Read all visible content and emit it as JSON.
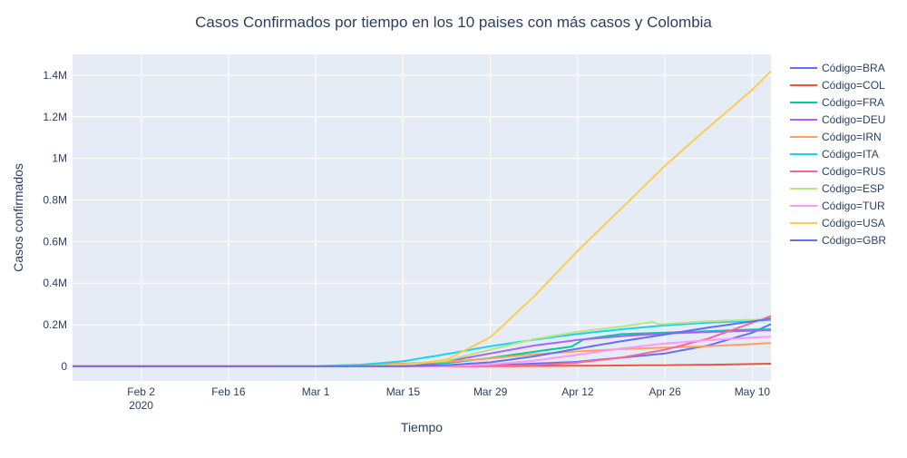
{
  "chart_data": {
    "type": "line",
    "title": "Casos Confirmados por tiempo en los 10 paises con más casos y Colombia",
    "xlabel": "Tiempo",
    "ylabel": "Casos confirmados",
    "legend_position": "right",
    "grid": true,
    "x_range": [
      "2020-01-22",
      "2020-05-13"
    ],
    "y_range": [
      -70000,
      1500000
    ],
    "x_ticks": [
      {
        "date": "2020-02-02",
        "label": "Feb 2",
        "sublabel": "2020"
      },
      {
        "date": "2020-02-16",
        "label": "Feb 16"
      },
      {
        "date": "2020-03-01",
        "label": "Mar 1"
      },
      {
        "date": "2020-03-15",
        "label": "Mar 15"
      },
      {
        "date": "2020-03-29",
        "label": "Mar 29"
      },
      {
        "date": "2020-04-12",
        "label": "Apr 12"
      },
      {
        "date": "2020-04-26",
        "label": "Apr 26"
      },
      {
        "date": "2020-05-10",
        "label": "May 10"
      }
    ],
    "y_ticks": [
      {
        "value": 0,
        "label": "0"
      },
      {
        "value": 200000,
        "label": "0.2M"
      },
      {
        "value": 400000,
        "label": "0.4M"
      },
      {
        "value": 600000,
        "label": "0.6M"
      },
      {
        "value": 800000,
        "label": "0.8M"
      },
      {
        "value": 1000000,
        "label": "1M"
      },
      {
        "value": 1200000,
        "label": "1.2M"
      },
      {
        "value": 1400000,
        "label": "1.4M"
      }
    ],
    "series": [
      {
        "name": "Código=BRA",
        "color": "#636efa",
        "points": [
          [
            "2020-01-22",
            0
          ],
          [
            "2020-03-15",
            200
          ],
          [
            "2020-03-29",
            4300
          ],
          [
            "2020-04-12",
            22000
          ],
          [
            "2020-04-26",
            62000
          ],
          [
            "2020-05-03",
            101000
          ],
          [
            "2020-05-10",
            162000
          ],
          [
            "2020-05-13",
            203000
          ]
        ]
      },
      {
        "name": "Código=COL",
        "color": "#ef553b",
        "points": [
          [
            "2020-01-22",
            0
          ],
          [
            "2020-03-15",
            50
          ],
          [
            "2020-03-29",
            700
          ],
          [
            "2020-04-12",
            2800
          ],
          [
            "2020-04-26",
            5600
          ],
          [
            "2020-05-03",
            7700
          ],
          [
            "2020-05-10",
            11000
          ],
          [
            "2020-05-13",
            12900
          ]
        ]
      },
      {
        "name": "Código=FRA",
        "color": "#00cc96",
        "points": [
          [
            "2020-01-22",
            0
          ],
          [
            "2020-03-01",
            130
          ],
          [
            "2020-03-15",
            5400
          ],
          [
            "2020-03-22",
            16000
          ],
          [
            "2020-03-29",
            40000
          ],
          [
            "2020-04-05",
            70000
          ],
          [
            "2020-04-11",
            95000
          ],
          [
            "2020-04-13",
            130000
          ],
          [
            "2020-04-19",
            155000
          ],
          [
            "2020-04-26",
            162000
          ],
          [
            "2020-05-03",
            169000
          ],
          [
            "2020-05-10",
            177000
          ],
          [
            "2020-05-13",
            178000
          ]
        ]
      },
      {
        "name": "Código=DEU",
        "color": "#ab63fa",
        "points": [
          [
            "2020-01-22",
            0
          ],
          [
            "2020-03-01",
            130
          ],
          [
            "2020-03-15",
            5800
          ],
          [
            "2020-03-22",
            24000
          ],
          [
            "2020-03-29",
            62000
          ],
          [
            "2020-04-05",
            100000
          ],
          [
            "2020-04-12",
            127000
          ],
          [
            "2020-04-19",
            145000
          ],
          [
            "2020-04-26",
            158000
          ],
          [
            "2020-05-03",
            165000
          ],
          [
            "2020-05-10",
            171000
          ],
          [
            "2020-05-13",
            174000
          ]
        ]
      },
      {
        "name": "Código=IRN",
        "color": "#ffa15a",
        "points": [
          [
            "2020-01-22",
            0
          ],
          [
            "2020-02-26",
            140
          ],
          [
            "2020-03-01",
            1500
          ],
          [
            "2020-03-08",
            6600
          ],
          [
            "2020-03-15",
            14000
          ],
          [
            "2020-03-22",
            21600
          ],
          [
            "2020-03-29",
            38300
          ],
          [
            "2020-04-05",
            58000
          ],
          [
            "2020-04-12",
            72000
          ],
          [
            "2020-04-19",
            83000
          ],
          [
            "2020-04-26",
            90000
          ],
          [
            "2020-05-03",
            97000
          ],
          [
            "2020-05-10",
            107000
          ],
          [
            "2020-05-13",
            112000
          ]
        ]
      },
      {
        "name": "Código=ITA",
        "color": "#19d3f3",
        "points": [
          [
            "2020-01-22",
            0
          ],
          [
            "2020-02-23",
            150
          ],
          [
            "2020-03-01",
            1700
          ],
          [
            "2020-03-08",
            7400
          ],
          [
            "2020-03-15",
            24700
          ],
          [
            "2020-03-22",
            59000
          ],
          [
            "2020-03-29",
            97000
          ],
          [
            "2020-04-05",
            128000
          ],
          [
            "2020-04-12",
            156000
          ],
          [
            "2020-04-19",
            178000
          ],
          [
            "2020-04-26",
            197000
          ],
          [
            "2020-05-03",
            210000
          ],
          [
            "2020-05-10",
            219000
          ],
          [
            "2020-05-13",
            222000
          ]
        ]
      },
      {
        "name": "Código=RUS",
        "color": "#ff6692",
        "points": [
          [
            "2020-01-22",
            0
          ],
          [
            "2020-03-15",
            60
          ],
          [
            "2020-03-29",
            1500
          ],
          [
            "2020-04-05",
            5400
          ],
          [
            "2020-04-12",
            18000
          ],
          [
            "2020-04-19",
            42000
          ],
          [
            "2020-04-26",
            80000
          ],
          [
            "2020-05-03",
            134000
          ],
          [
            "2020-05-10",
            210000
          ],
          [
            "2020-05-13",
            242000
          ]
        ]
      },
      {
        "name": "Código=ESP",
        "color": "#b6e880",
        "points": [
          [
            "2020-01-22",
            0
          ],
          [
            "2020-03-01",
            80
          ],
          [
            "2020-03-08",
            670
          ],
          [
            "2020-03-15",
            7800
          ],
          [
            "2020-03-22",
            28600
          ],
          [
            "2020-03-29",
            80000
          ],
          [
            "2020-04-05",
            131000
          ],
          [
            "2020-04-12",
            166000
          ],
          [
            "2020-04-19",
            191000
          ],
          [
            "2020-04-24",
            213000
          ],
          [
            "2020-04-25",
            202000
          ],
          [
            "2020-05-03",
            217000
          ],
          [
            "2020-05-10",
            224000
          ],
          [
            "2020-05-13",
            228000
          ]
        ]
      },
      {
        "name": "Código=TUR",
        "color": "#ff97ff",
        "points": [
          [
            "2020-01-22",
            0
          ],
          [
            "2020-03-15",
            50
          ],
          [
            "2020-03-22",
            1200
          ],
          [
            "2020-03-29",
            9200
          ],
          [
            "2020-04-05",
            27000
          ],
          [
            "2020-04-12",
            56000
          ],
          [
            "2020-04-19",
            86000
          ],
          [
            "2020-04-26",
            110000
          ],
          [
            "2020-05-03",
            126000
          ],
          [
            "2020-05-10",
            138000
          ],
          [
            "2020-05-13",
            143000
          ]
        ]
      },
      {
        "name": "Código=USA",
        "color": "#fecb52",
        "points": [
          [
            "2020-01-22",
            0
          ],
          [
            "2020-03-01",
            70
          ],
          [
            "2020-03-08",
            500
          ],
          [
            "2020-03-15",
            3500
          ],
          [
            "2020-03-22",
            33000
          ],
          [
            "2020-03-29",
            140000
          ],
          [
            "2020-04-05",
            336000
          ],
          [
            "2020-04-12",
            556000
          ],
          [
            "2020-04-19",
            759000
          ],
          [
            "2020-04-26",
            965000
          ],
          [
            "2020-05-03",
            1150000
          ],
          [
            "2020-05-10",
            1330000
          ],
          [
            "2020-05-13",
            1420000
          ]
        ]
      },
      {
        "name": "Código=GBR",
        "color": "#636efa",
        "points": [
          [
            "2020-01-22",
            0
          ],
          [
            "2020-03-01",
            40
          ],
          [
            "2020-03-15",
            1100
          ],
          [
            "2020-03-22",
            5700
          ],
          [
            "2020-03-29",
            19500
          ],
          [
            "2020-04-05",
            48000
          ],
          [
            "2020-04-12",
            85000
          ],
          [
            "2020-04-19",
            121000
          ],
          [
            "2020-04-26",
            153000
          ],
          [
            "2020-05-03",
            187000
          ],
          [
            "2020-05-10",
            216000
          ],
          [
            "2020-05-13",
            230000
          ]
        ]
      }
    ]
  }
}
